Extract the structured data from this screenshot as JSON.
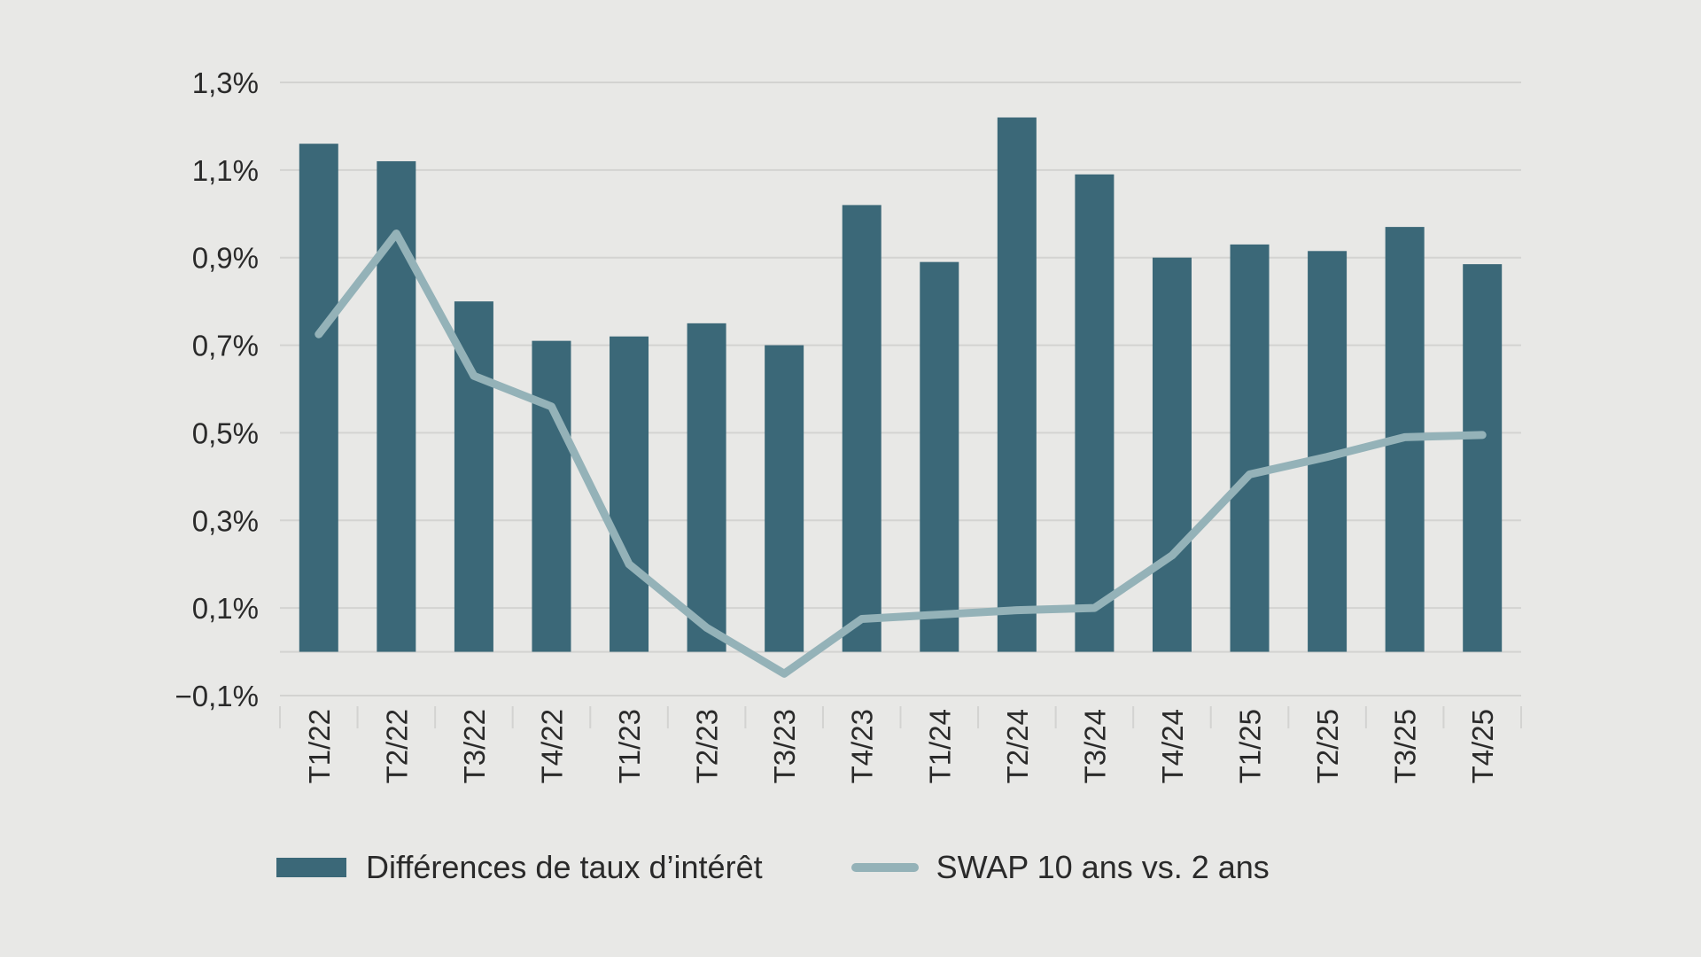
{
  "chart_data": {
    "type": "bar",
    "categories": [
      "T1/22",
      "T2/22",
      "T3/22",
      "T4/22",
      "T1/23",
      "T2/23",
      "T3/23",
      "T4/23",
      "T1/24",
      "T2/24",
      "T3/24",
      "T4/24",
      "T1/25",
      "T2/25",
      "T3/25",
      "T4/25"
    ],
    "series": [
      {
        "name": "Différences de taux d’intérêt",
        "type": "bar",
        "color": "#3b6878",
        "values": [
          1.16,
          1.12,
          0.8,
          0.71,
          0.72,
          0.75,
          0.7,
          1.02,
          0.89,
          1.22,
          1.09,
          0.9,
          0.93,
          0.915,
          0.97,
          0.885
        ]
      },
      {
        "name": "SWAP 10 ans vs. 2 ans",
        "type": "line",
        "color": "#94b2b8",
        "values": [
          0.725,
          0.955,
          0.63,
          0.56,
          0.2,
          0.055,
          -0.05,
          0.075,
          0.085,
          0.095,
          0.1,
          0.22,
          0.405,
          0.445,
          0.49,
          0.495
        ]
      }
    ],
    "yticks": [
      -0.1,
      0.1,
      0.3,
      0.5,
      0.7,
      0.9,
      1.1,
      1.3
    ],
    "ytick_labels": [
      "−0,1%",
      "0,1%",
      "0,3%",
      "0,5%",
      "0,7%",
      "0,9%",
      "1,1%",
      "1,3%"
    ],
    "ylim": [
      -0.1,
      1.3
    ],
    "grid": true,
    "legend_position": "bottom-left",
    "colors": {
      "background": "#e8e8e6",
      "grid": "#d3d3d1"
    }
  }
}
